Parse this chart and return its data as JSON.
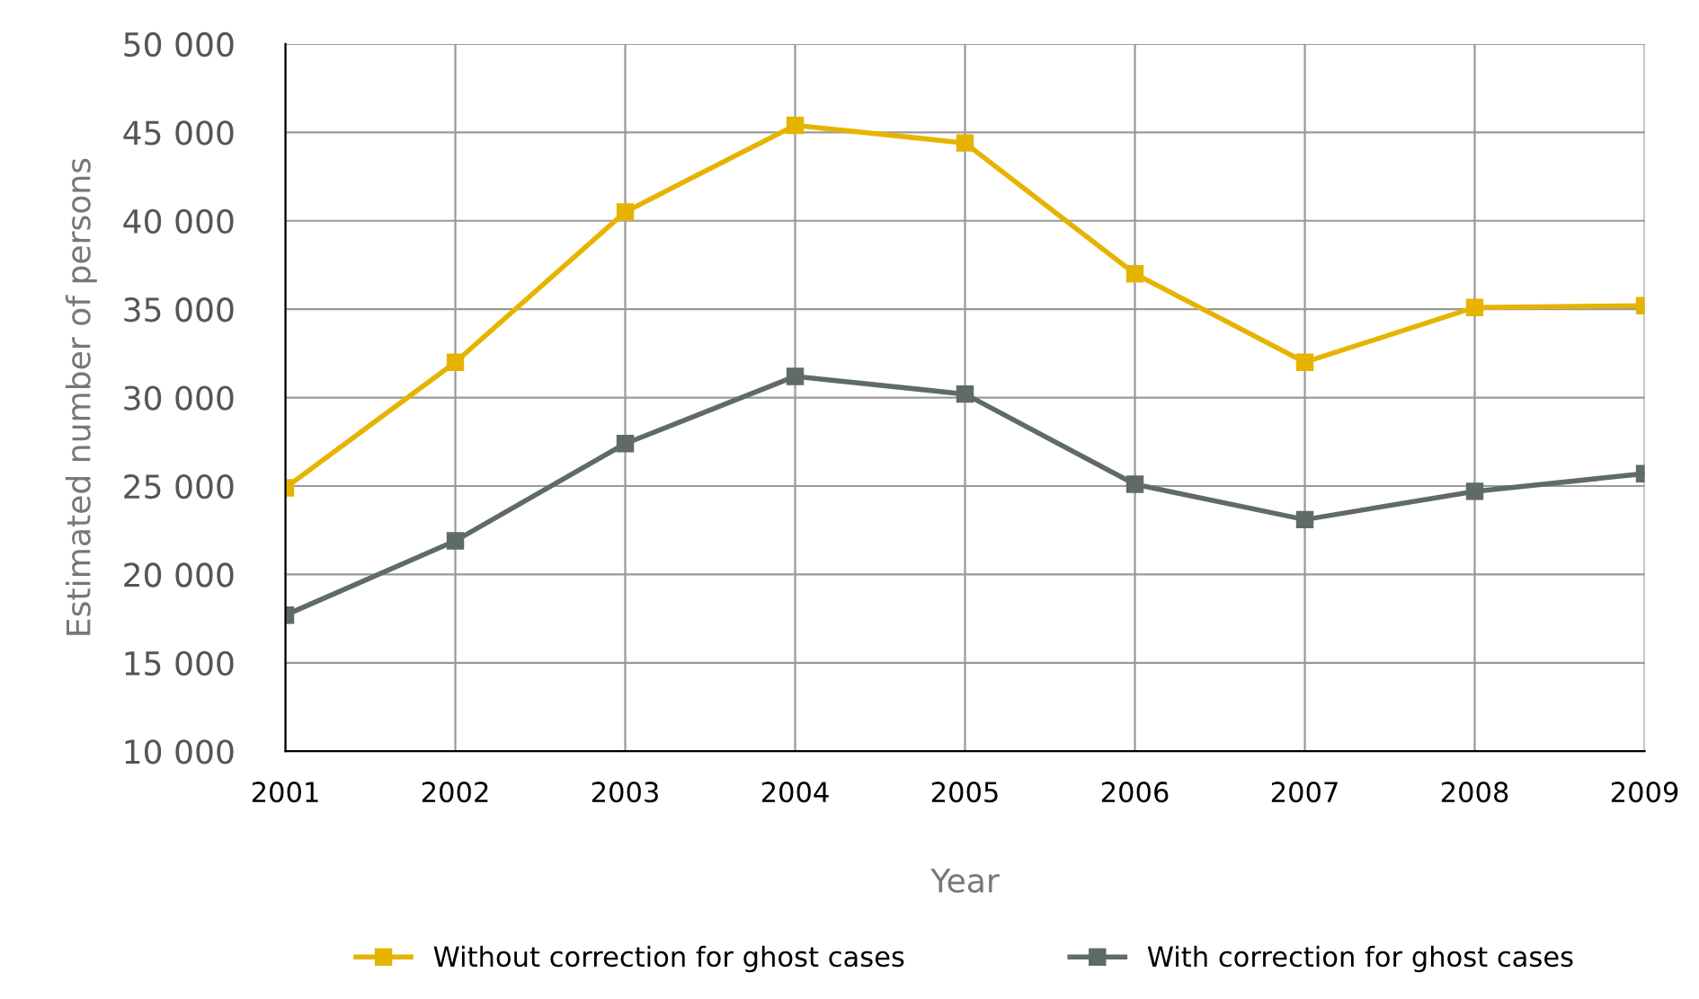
{
  "chart_data": {
    "type": "line",
    "xlabel": "Year",
    "ylabel": "Estimated number of persons",
    "categories": [
      "2001",
      "2002",
      "2003",
      "2004",
      "2005",
      "2006",
      "2007",
      "2008",
      "2009"
    ],
    "series": [
      {
        "name": "Without correction for ghost cases",
        "color": "#e6b400",
        "values": [
          24900,
          32000,
          40500,
          45400,
          44400,
          37000,
          32000,
          35100,
          35200
        ]
      },
      {
        "name": "With correction for ghost cases",
        "color": "#5f6b66",
        "values": [
          17700,
          21900,
          27400,
          31200,
          30200,
          25100,
          23100,
          24700,
          25700
        ]
      }
    ],
    "ylim": [
      10000,
      50000
    ],
    "yticks": [
      {
        "value": 10000,
        "label": "10 000"
      },
      {
        "value": 15000,
        "label": "15 000"
      },
      {
        "value": 20000,
        "label": "20 000"
      },
      {
        "value": 25000,
        "label": "25 000"
      },
      {
        "value": 30000,
        "label": "30 000"
      },
      {
        "value": 35000,
        "label": "35 000"
      },
      {
        "value": 40000,
        "label": "40 000"
      },
      {
        "value": 45000,
        "label": "45 000"
      },
      {
        "value": 50000,
        "label": "50 000"
      }
    ],
    "grid": true,
    "legend": "bottom",
    "marker": "square",
    "line_style": "solid"
  }
}
